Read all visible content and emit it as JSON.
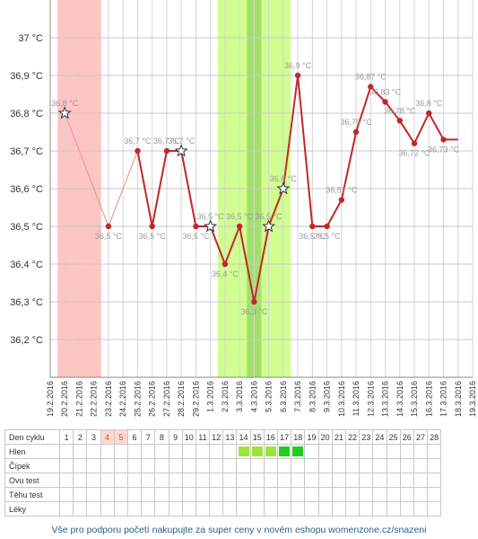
{
  "chart_data": {
    "type": "line",
    "yunit": "°C",
    "ylim": [
      36.1,
      37.1
    ],
    "yticks": [
      "36,2 °C",
      "36,3 °C",
      "36,4 °C",
      "36,5 °C",
      "36,6 °C",
      "36,7 °C",
      "36,8 °C",
      "36,9 °C",
      "37 °C"
    ],
    "ytick_values": [
      36.2,
      36.3,
      36.4,
      36.5,
      36.6,
      36.7,
      36.8,
      36.9,
      37.0
    ],
    "dates": [
      "19.2.2016",
      "20.2.2016",
      "21.2.2016",
      "22.2.2016",
      "23.2.2016",
      "24.2.2016",
      "25.2.2016",
      "26.2.2016",
      "27.2.2016",
      "28.2.2016",
      "29.2.2016",
      "1.3.2016",
      "2.3.2016",
      "3.3.2016",
      "4.3.2016",
      "5.3.2016",
      "6.3.2016",
      "7.3.2016",
      "8.3.2016",
      "9.3.2016",
      "10.3.2016",
      "11.3.2016",
      "12.3.2016",
      "13.3.2016",
      "14.3.2016",
      "15.3.2016",
      "16.3.2016",
      "17.3.2016",
      "18.3.2016",
      "19.3.2016"
    ],
    "points": [
      {
        "day": 1,
        "temp": 36.8,
        "label": "36,8 °C",
        "marker": "star"
      },
      {
        "day": 4,
        "temp": 36.5,
        "label": "36,5 °C",
        "marker": "dot"
      },
      {
        "day": 6,
        "temp": 36.7,
        "label": "36,7 °C",
        "marker": "dot"
      },
      {
        "day": 7,
        "temp": 36.5,
        "label": "36,5 °C",
        "marker": "dot"
      },
      {
        "day": 8,
        "temp": 36.7,
        "label": "36,7 °C",
        "marker": "dot"
      },
      {
        "day": 9,
        "temp": 36.7,
        "label": "36,7 °C",
        "marker": "star"
      },
      {
        "day": 10,
        "temp": 36.5,
        "label": "36,5 °C",
        "marker": "dot"
      },
      {
        "day": 11,
        "temp": 36.5,
        "label": "36,5 °C",
        "marker": "star"
      },
      {
        "day": 12,
        "temp": 36.4,
        "label": "36,4 °C",
        "marker": "dot"
      },
      {
        "day": 13,
        "temp": 36.5,
        "label": "36,5 °C",
        "marker": "dot"
      },
      {
        "day": 14,
        "temp": 36.3,
        "label": "36,3 °C",
        "marker": "dot"
      },
      {
        "day": 15,
        "temp": 36.5,
        "label": "36,5 °C",
        "marker": "star"
      },
      {
        "day": 16,
        "temp": 36.6,
        "label": "36,6 °C",
        "marker": "star"
      },
      {
        "day": 17,
        "temp": 36.9,
        "label": "36,9 °C",
        "marker": "dot"
      },
      {
        "day": 18,
        "temp": 36.5,
        "label": "36,5 °C",
        "marker": "dot"
      },
      {
        "day": 19,
        "temp": 36.5,
        "label": "36,5 °C",
        "marker": "dot"
      },
      {
        "day": 20,
        "temp": 36.57,
        "label": "36,57 °C",
        "marker": "dot"
      },
      {
        "day": 21,
        "temp": 36.75,
        "label": "36,75 °C",
        "marker": "dot"
      },
      {
        "day": 22,
        "temp": 36.87,
        "label": "36,87 °C",
        "marker": "dot"
      },
      {
        "day": 23,
        "temp": 36.83,
        "label": "36,83 °C",
        "marker": "dot"
      },
      {
        "day": 24,
        "temp": 36.78,
        "label": "36,78 °C",
        "marker": "dot"
      },
      {
        "day": 25,
        "temp": 36.72,
        "label": "36,72 °C",
        "marker": "dot"
      },
      {
        "day": 26,
        "temp": 36.8,
        "label": "36,8 °C",
        "marker": "dot"
      },
      {
        "day": 27,
        "temp": 36.73,
        "label": "36,73 °C",
        "marker": "dot"
      },
      {
        "day": 28,
        "temp": 36.73,
        "label": "",
        "marker": "none"
      }
    ],
    "bands": [
      {
        "name": "period",
        "from_day": 0.5,
        "to_day": 3.5,
        "color": "#ffc4c4"
      },
      {
        "name": "fertile",
        "from_day": 11.5,
        "to_day": 16.5,
        "color": "#d0ff90"
      },
      {
        "name": "fertile-peak",
        "from_day": 13.5,
        "to_day": 14.5,
        "color": "#a3e06a"
      }
    ],
    "line_color": "#c0282a",
    "faded_line_color": "#e39c9c",
    "grid": true
  },
  "table": {
    "header_label": "Den cyklu",
    "days": [
      "1",
      "2",
      "3",
      "4",
      "5",
      "6",
      "7",
      "8",
      "9",
      "10",
      "11",
      "12",
      "13",
      "14",
      "15",
      "16",
      "17",
      "18",
      "19",
      "20",
      "21",
      "22",
      "23",
      "24",
      "25",
      "26",
      "27",
      "28"
    ],
    "period_days": [
      "4",
      "5"
    ],
    "rows": [
      {
        "label": "Hlen",
        "marks": {
          "14": "#9be53a",
          "15": "#9be53a",
          "16": "#9be53a",
          "17": "#22cc22",
          "18": "#22cc22"
        }
      },
      {
        "label": "Čípek",
        "marks": {}
      },
      {
        "label": "Ovu test",
        "marks": {}
      },
      {
        "label": "Těhu test",
        "marks": {}
      },
      {
        "label": "Léky",
        "marks": {}
      }
    ]
  },
  "footer": {
    "text": "Vše pro podporu početí nakupujte za super ceny v novém eshopu womenzone.cz/snazeni"
  }
}
